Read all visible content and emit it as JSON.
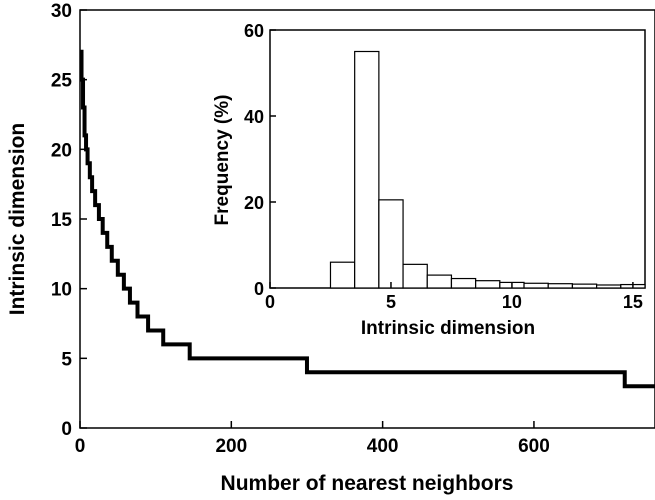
{
  "chart_data": [
    {
      "type": "line",
      "xlabel": "Number of nearest neighbors",
      "ylabel": "Intrinsic dimension",
      "xlim": [
        0,
        760
      ],
      "ylim": [
        0,
        30
      ],
      "xticks": [
        0,
        200,
        400,
        600
      ],
      "yticks": [
        0,
        5,
        10,
        15,
        20,
        25,
        30
      ],
      "grid": false,
      "series": [
        {
          "step_line": true,
          "x": [
            0,
            2,
            4,
            6,
            8,
            10,
            13,
            16,
            20,
            25,
            30,
            36,
            42,
            50,
            58,
            66,
            76,
            90,
            110,
            145,
            300,
            720,
            760
          ],
          "y": [
            27,
            25,
            23,
            21,
            20,
            19,
            18,
            17,
            16,
            15,
            14,
            13,
            12,
            11,
            10,
            9,
            8,
            7,
            6,
            5,
            4,
            3,
            3
          ]
        }
      ]
    },
    {
      "type": "bar",
      "inset": true,
      "xlabel": "Intrinsic dimension",
      "ylabel": "Frequency (%)",
      "xlim": [
        0,
        15.5
      ],
      "ylim": [
        0,
        60
      ],
      "xticks": [
        0,
        5,
        10,
        15
      ],
      "yticks": [
        0,
        20,
        40,
        60
      ],
      "bin_width": 1,
      "bin_starts": [
        2.5,
        3.5,
        4.5,
        5.5,
        6.5,
        7.5,
        8.5,
        9.5,
        10.5,
        11.5,
        12.5,
        13.5,
        14.5
      ],
      "values": [
        6,
        55,
        20.5,
        5.5,
        3,
        2.2,
        1.7,
        1.3,
        1.1,
        1.0,
        0.9,
        0.7,
        0.8
      ]
    }
  ]
}
